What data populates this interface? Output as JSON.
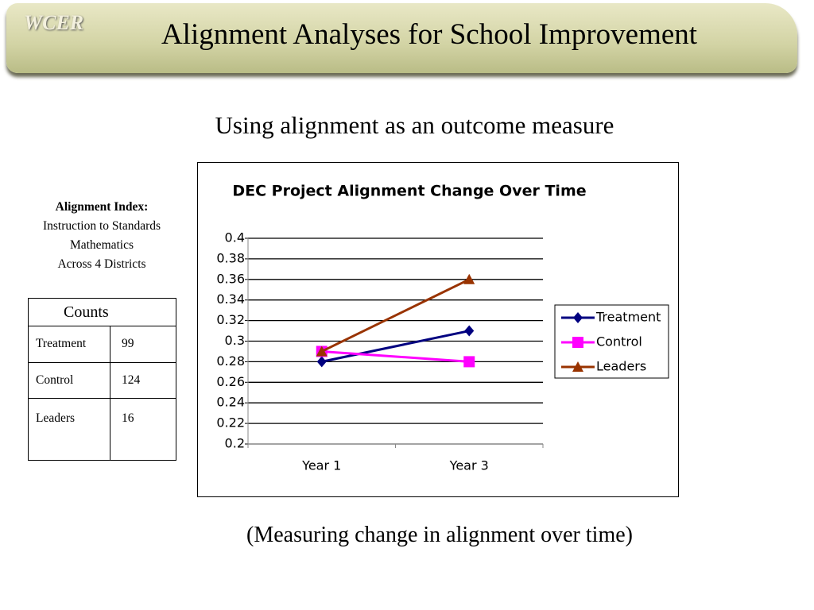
{
  "header": {
    "logo": "WCER",
    "title": "Alignment Analyses for School Improvement"
  },
  "subtitle": "Using alignment as an outcome measure",
  "info": {
    "heading": "Alignment Index:",
    "lines": [
      "Instruction to Standards",
      "Mathematics",
      "Across 4 Districts"
    ]
  },
  "table": {
    "header": "Counts",
    "rows": [
      [
        "Treatment",
        99
      ],
      [
        "Control",
        124
      ],
      [
        "Leaders",
        16
      ]
    ]
  },
  "caption": "(Measuring change in alignment over time)",
  "chart_data": {
    "type": "line",
    "title": "DEC Project Alignment Change Over Time",
    "categories": [
      "Year 1",
      "Year 3"
    ],
    "series": [
      {
        "name": "Treatment",
        "color": "#000080",
        "marker": "diamond",
        "values": [
          0.28,
          0.31
        ]
      },
      {
        "name": "Control",
        "color": "#ff00ff",
        "marker": "square",
        "values": [
          0.29,
          0.28
        ]
      },
      {
        "name": "Leaders",
        "color": "#993300",
        "marker": "triangle",
        "values": [
          0.29,
          0.36
        ]
      }
    ],
    "ylim": [
      0.2,
      0.4
    ],
    "yticks": [
      0.2,
      0.22,
      0.24,
      0.26,
      0.28,
      0.3,
      0.32,
      0.34,
      0.36,
      0.38,
      0.4
    ],
    "grid": true,
    "legend": "right"
  }
}
